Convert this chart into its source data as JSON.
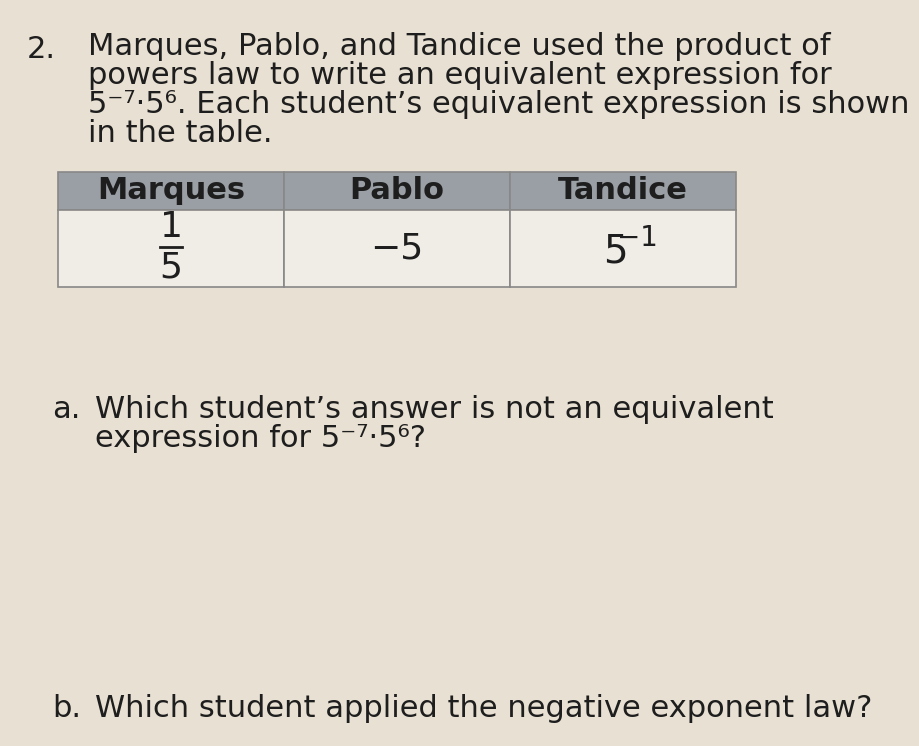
{
  "page_bg": "#e8e0d2",
  "number": "2.",
  "intro_text_lines": [
    "Marques, Pablo, and Tandice used the product of",
    "powers law to write an equivalent expression for",
    "5⁻⁷·5⁶. Each student’s equivalent expression is shown",
    "in the table."
  ],
  "table": {
    "headers": [
      "Marques",
      "Pablo",
      "Tandice"
    ],
    "header_bg": "#9a9fa5",
    "row_bg": "#f0ece6",
    "border_color": "#888888",
    "marques_num": "1",
    "marques_den": "5",
    "pablo_val": "−5",
    "tandice_base": "5",
    "tandice_exp": "−1"
  },
  "question_a_prefix": "a.",
  "question_a_text_lines": [
    "Which student’s answer is not an equivalent",
    "expression for 5⁻⁷·5⁶?"
  ],
  "question_b_prefix": "b.",
  "question_b_text": "Which student applied the negative exponent law?",
  "font_size_number": 22,
  "font_size_intro": 22,
  "font_size_table_header": 22,
  "font_size_table_value": 24,
  "font_size_question": 22,
  "text_color": "#1e1e1e"
}
